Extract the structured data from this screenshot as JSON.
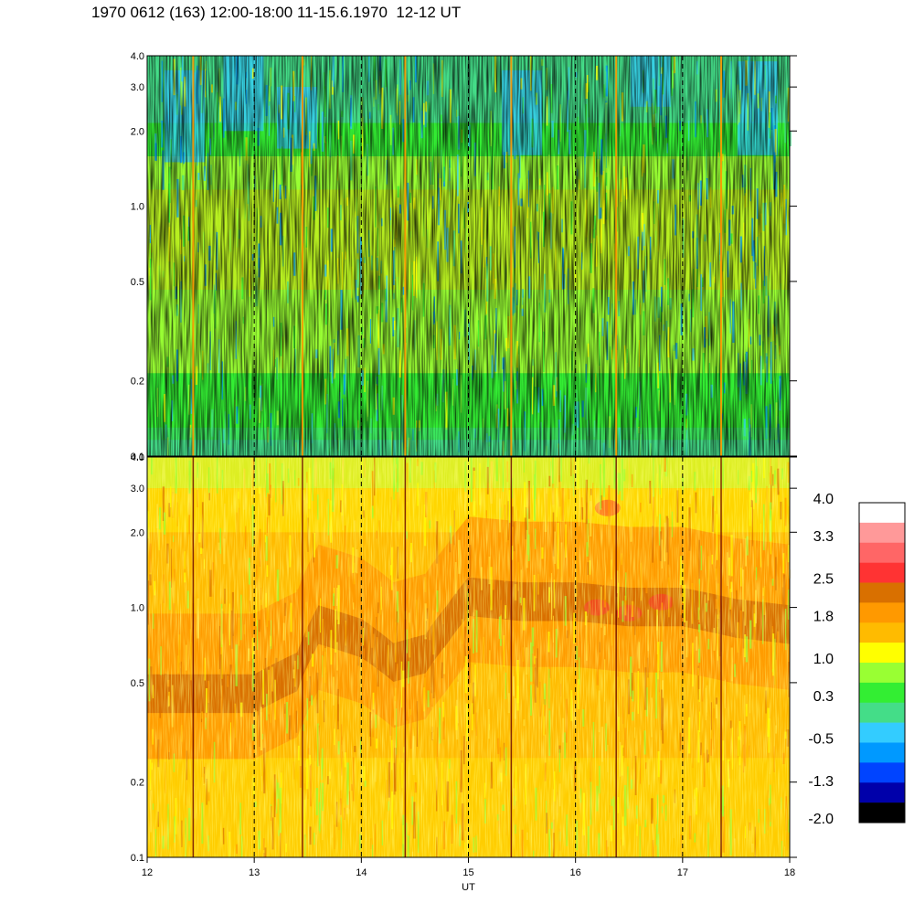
{
  "title": "1970 0612 (163) 12:00-18:00 11-15.6.1970  12-12 UT",
  "chart_data": {
    "type": "heatmap",
    "panels": [
      {
        "name": "",
        "y_scale": "log",
        "ylim": [
          0.1,
          4.0
        ],
        "y_ticks": [
          {
            "value": 0.1,
            "label": "0.1"
          },
          {
            "value": 0.2,
            "label": "0.2"
          },
          {
            "value": 0.5,
            "label": "0.5"
          },
          {
            "value": 1.0,
            "label": "1.0"
          },
          {
            "value": 2.0,
            "label": "2.0"
          },
          {
            "value": 3.0,
            "label": "3.0"
          },
          {
            "value": 4.0,
            "label": "4.0"
          }
        ],
        "profile": [
          {
            "y": 0.1,
            "level": 0.1
          },
          {
            "y": 0.15,
            "level": 0.3
          },
          {
            "y": 0.25,
            "level": 0.45
          },
          {
            "y": 0.4,
            "level": 0.75
          },
          {
            "y": 0.6,
            "level": 0.85
          },
          {
            "y": 1.0,
            "level": 0.95
          },
          {
            "y": 1.5,
            "level": 0.5
          },
          {
            "y": 2.5,
            "level": 0.0
          },
          {
            "y": 4.0,
            "level": 0.0
          }
        ]
      },
      {
        "name": "",
        "y_scale": "log",
        "ylim": [
          0.1,
          4.0
        ],
        "y_ticks": [
          {
            "value": 0.1,
            "label": "0.1"
          },
          {
            "value": 0.2,
            "label": "0.2"
          },
          {
            "value": 0.5,
            "label": "0.5"
          },
          {
            "value": 1.0,
            "label": "1.0"
          },
          {
            "value": 2.0,
            "label": "2.0"
          },
          {
            "value": 3.0,
            "label": "3.0"
          },
          {
            "value": 4.0,
            "label": "4.0"
          }
        ],
        "ridge": [
          {
            "x": 12.0,
            "y": 0.45
          },
          {
            "x": 12.5,
            "y": 0.45
          },
          {
            "x": 13.0,
            "y": 0.45
          },
          {
            "x": 13.4,
            "y": 0.55
          },
          {
            "x": 13.6,
            "y": 0.85
          },
          {
            "x": 14.0,
            "y": 0.75
          },
          {
            "x": 14.3,
            "y": 0.6
          },
          {
            "x": 14.6,
            "y": 0.65
          },
          {
            "x": 14.8,
            "y": 0.85
          },
          {
            "x": 15.0,
            "y": 1.1
          },
          {
            "x": 15.5,
            "y": 1.05
          },
          {
            "x": 16.0,
            "y": 1.05
          },
          {
            "x": 16.5,
            "y": 1.0
          },
          {
            "x": 17.0,
            "y": 1.0
          },
          {
            "x": 17.5,
            "y": 0.9
          },
          {
            "x": 18.0,
            "y": 0.85
          }
        ]
      }
    ],
    "x": {
      "label": "UT",
      "range": [
        12,
        18
      ],
      "ticks": [
        "12",
        "13",
        "14",
        "15",
        "16",
        "17",
        "18"
      ]
    },
    "dashed_gridlines_x": [
      13,
      14,
      15,
      16,
      17
    ],
    "spikes_x": [
      12.43,
      13.45,
      14.41,
      15.4,
      16.38,
      17.36
    ],
    "colorbar": {
      "levels": [
        4.0,
        3.3,
        2.5,
        1.8,
        1.0,
        0.3,
        -0.5,
        -1.3,
        -2.0
      ],
      "labels": [
        "4.0",
        "3.3",
        "2.5",
        "1.8",
        "1.0",
        "0.3",
        "-0.5",
        "-1.3",
        "-2.0"
      ],
      "colors": [
        "#ffffff",
        "#ff9999",
        "#ff6666",
        "#ff3333",
        "#d97000",
        "#ff9900",
        "#ffbb00",
        "#ffff00",
        "#99ff33",
        "#33ee33",
        "#44dd88",
        "#33ccff",
        "#0099ff",
        "#0044ff",
        "#0000aa",
        "#000000"
      ]
    }
  }
}
